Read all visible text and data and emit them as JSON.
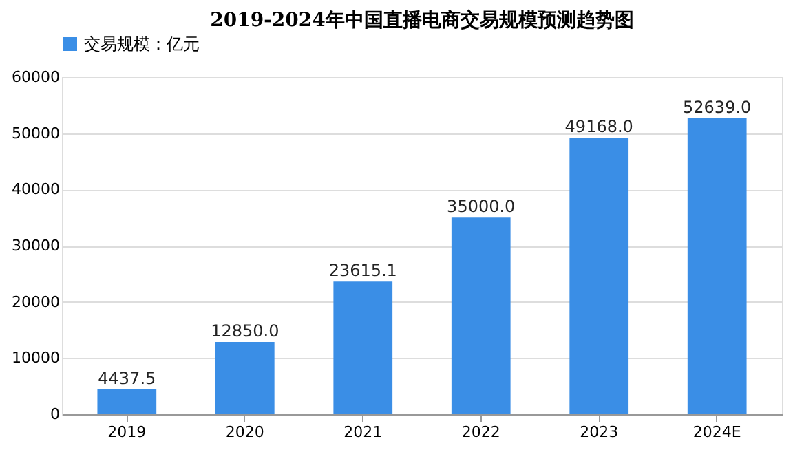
{
  "chart_data": {
    "type": "bar",
    "title": "2019-2024年中国直播电商交易规模预测趋势图",
    "categories": [
      "2019",
      "2020",
      "2021",
      "2022",
      "2023",
      "2024E"
    ],
    "series": [
      {
        "name": "交易规模：亿元",
        "color": "#3a8ee6",
        "values": [
          4437.5,
          12850.0,
          23615.1,
          35000.0,
          49168.0,
          52639.0
        ]
      }
    ],
    "value_labels": [
      "4437.5",
      "12850.0",
      "23615.1",
      "35000.0",
      "49168.0",
      "52639.0"
    ],
    "ylim": [
      0,
      60000
    ],
    "yticks": [
      0,
      10000,
      20000,
      30000,
      40000,
      50000,
      60000
    ],
    "grid": "y",
    "legend": "top"
  }
}
